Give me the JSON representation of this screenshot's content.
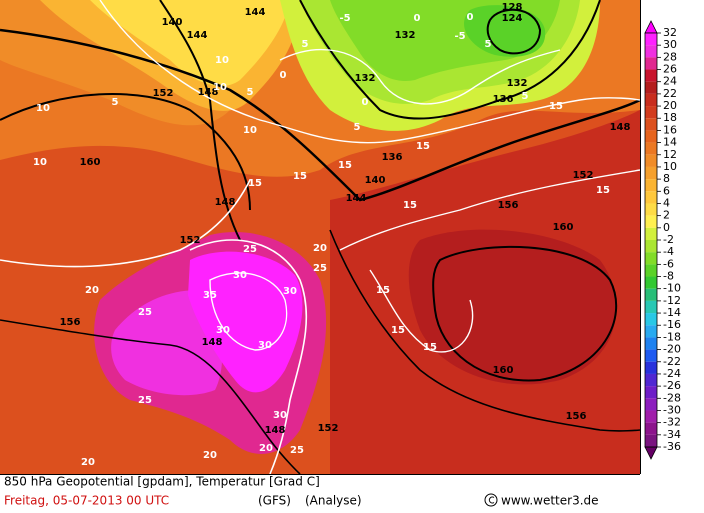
{
  "colorbar": {
    "ticks": [
      32,
      30,
      28,
      26,
      24,
      22,
      20,
      18,
      16,
      14,
      12,
      10,
      8,
      6,
      4,
      2,
      0,
      -2,
      -4,
      -6,
      -8,
      -10,
      -12,
      -14,
      -16,
      -18,
      -20,
      -22,
      -24,
      -26,
      -28,
      -30,
      -32,
      -34,
      -36
    ],
    "colors": [
      "#ff00ff",
      "#ff22ff",
      "#f030e0",
      "#e02890",
      "#c8142d",
      "#b41e1e",
      "#c82d1e",
      "#d23c1e",
      "#dc501e",
      "#e6641e",
      "#eb7823",
      "#f08c28",
      "#f5a02d",
      "#fab432",
      "#ffc83c",
      "#ffdc46",
      "#fff050",
      "#d2f03c",
      "#aae632",
      "#82dc28",
      "#5ad228",
      "#32c832",
      "#28be78",
      "#28c8b4",
      "#28c8e6",
      "#28aaf0",
      "#1e82f0",
      "#1e5af0",
      "#2832dc",
      "#5028d2",
      "#6e1ec8",
      "#8c1ebe",
      "#a01eaa",
      "#8c148c",
      "#7a1480",
      "#640064"
    ]
  },
  "contour_labels": {
    "geopotential": [
      "144",
      "140",
      "144",
      "152",
      "148",
      "160",
      "148",
      "152",
      "156",
      "148",
      "148",
      "152",
      "144",
      "140",
      "136",
      "132",
      "132",
      "128",
      "124",
      "132",
      "136",
      "148",
      "152",
      "156",
      "160",
      "160",
      "156"
    ],
    "temperature": [
      "10",
      "10",
      "5",
      "10",
      "10",
      "5",
      "10",
      "15",
      "15",
      "15",
      "15",
      "15",
      "15",
      "15",
      "20",
      "25",
      "25",
      "20",
      "20",
      "30",
      "30",
      "30",
      "30",
      "25",
      "20",
      "15",
      "15",
      "15",
      "35",
      "25",
      "20",
      "25",
      "30",
      "0",
      "5",
      "0",
      "0",
      "5",
      "-5",
      "0",
      "5",
      "5",
      "-5"
    ]
  },
  "footer": {
    "title": "850 hPa Geopotential [gpdam], Temperatur [Grad C]",
    "date": "Freitag, 05-07-2013  00 UTC",
    "model": "(GFS)",
    "run": "(Analyse)",
    "credit": "www.wetter3.de"
  }
}
